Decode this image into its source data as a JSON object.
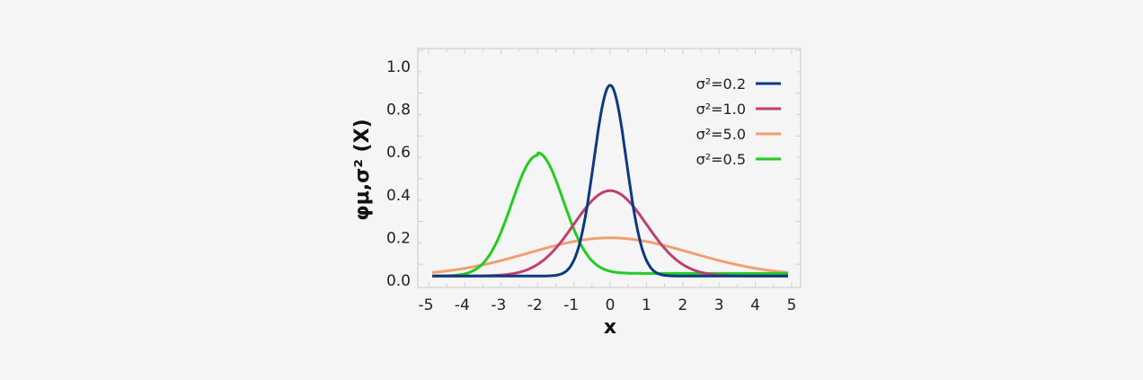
{
  "chart_data": {
    "type": "line",
    "title": "",
    "xlabel": "x",
    "ylabel": "φμ,σ² (X)",
    "xlim": [
      -5,
      5
    ],
    "ylim": [
      0,
      1.0
    ],
    "grid": false,
    "legend_position": "upper right",
    "x_ticks": [
      "-5",
      "-4",
      "-3",
      "-2",
      "-1",
      "0",
      "1",
      "2",
      "3",
      "4",
      "5"
    ],
    "y_ticks": [
      "0.0",
      "0.2",
      "0.4",
      "0.6",
      "0.8",
      "1.0"
    ],
    "series": [
      {
        "name": "σ²=0.2",
        "mu": 0,
        "sigma2": 0.2,
        "color": "#0b3a80",
        "peak": [
          0,
          0.89
        ]
      },
      {
        "name": "σ²=1.0",
        "mu": 0,
        "sigma2": 1.0,
        "color": "#c0406f",
        "peak": [
          0,
          0.4
        ]
      },
      {
        "name": "σ²=5.0",
        "mu": 0,
        "sigma2": 5.0,
        "color": "#f0a070",
        "peak": [
          0,
          0.18
        ]
      },
      {
        "name": "σ²=0.5",
        "mu": -2,
        "sigma2": 0.5,
        "color": "#22cc22",
        "peak": [
          -2,
          0.56
        ]
      }
    ]
  }
}
